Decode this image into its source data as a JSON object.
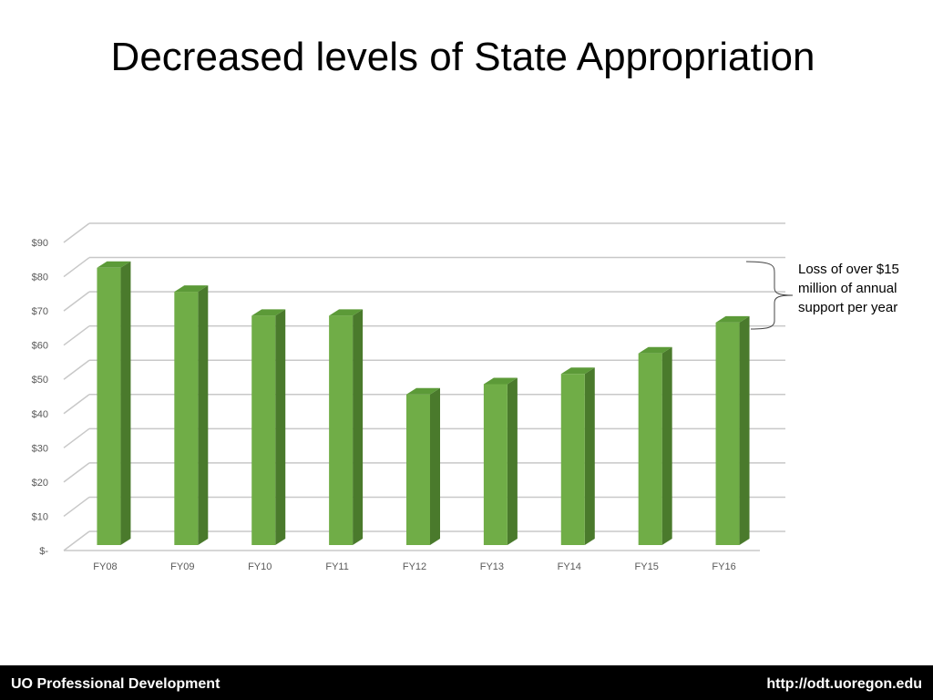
{
  "slide": {
    "title": "Decreased levels of State Appropriation"
  },
  "annotation": {
    "lines": [
      "Loss of over $15",
      "million of annual",
      "support per year"
    ]
  },
  "footer": {
    "left": "UO Professional Development",
    "right": "http://odt.uoregon.edu"
  },
  "colors": {
    "bar_front": "#70ad47",
    "bar_side": "#4a7a2c",
    "bar_top": "#5c9a38",
    "grid": "#c8c8c8",
    "footer_bg": "#000000"
  },
  "chart_data": {
    "type": "bar",
    "categories": [
      "FY08",
      "FY09",
      "FY10",
      "FY11",
      "FY12",
      "FY13",
      "FY14",
      "FY15",
      "FY16"
    ],
    "values": [
      81,
      74,
      67,
      67,
      44,
      47,
      50,
      56,
      65
    ],
    "ylim": [
      0,
      90
    ],
    "ytick_labels": [
      "$-",
      "$10",
      "$20",
      "$30",
      "$40",
      "$50",
      "$60",
      "$70",
      "$80",
      "$90"
    ],
    "title": "",
    "xlabel": "",
    "ylabel": "",
    "grid": true,
    "legend": "none"
  }
}
